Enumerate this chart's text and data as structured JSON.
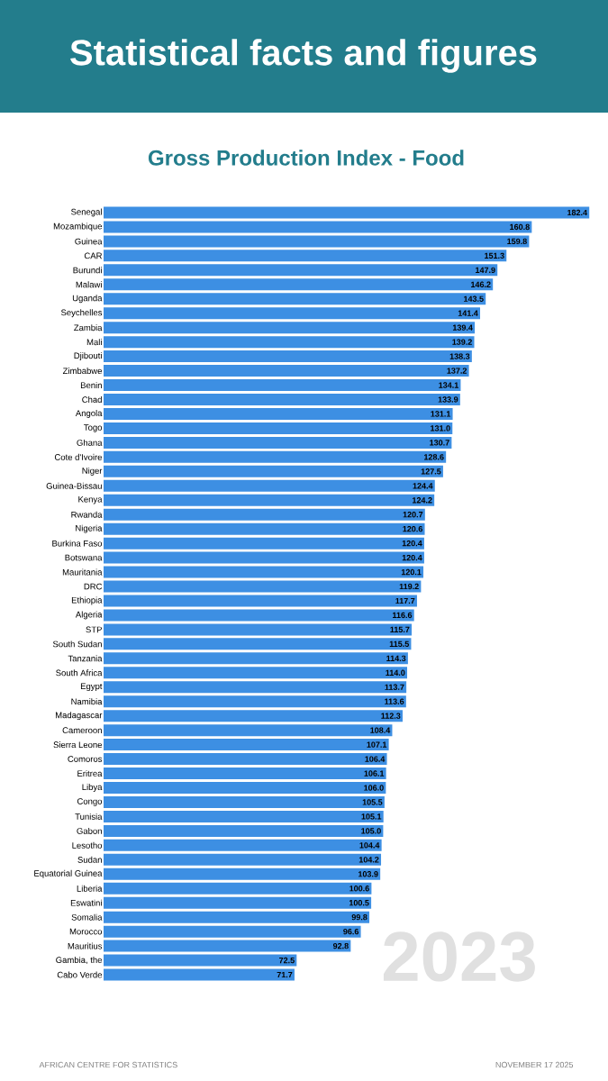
{
  "chart_data": {
    "type": "bar",
    "orientation": "horizontal",
    "title": "Statistical facts and figures",
    "subtitle": "Gross Production Index - Food",
    "categories": [
      "Senegal",
      "Mozambique",
      "Guinea",
      "CAR",
      "Burundi",
      "Malawi",
      "Uganda",
      "Seychelles",
      "Zambia",
      "Mali",
      "Djibouti",
      "Zimbabwe",
      "Benin",
      "Chad",
      "Angola",
      "Togo",
      "Ghana",
      "Cote d'Ivoire",
      "Niger",
      "Guinea-Bissau",
      "Kenya",
      "Rwanda",
      "Nigeria",
      "Burkina Faso",
      "Botswana",
      "Mauritania",
      "DRC",
      "Ethiopia",
      "Algeria",
      "STP",
      "South Sudan",
      "Tanzania",
      "South Africa",
      "Egypt",
      "Namibia",
      "Madagascar",
      "Cameroon",
      "Sierra Leone",
      "Comoros",
      "Eritrea",
      "Libya",
      "Congo",
      "Tunisia",
      "Gabon",
      "Lesotho",
      "Sudan",
      "Equatorial Guinea",
      "Liberia",
      "Eswatini",
      "Somalia",
      "Morocco",
      "Mauritius",
      "Gambia, the",
      "Cabo Verde"
    ],
    "values": [
      182.4,
      160.8,
      159.8,
      151.3,
      147.9,
      146.2,
      143.5,
      141.4,
      139.4,
      139.2,
      138.3,
      137.2,
      134.1,
      133.9,
      131.1,
      131.0,
      130.7,
      128.6,
      127.5,
      124.4,
      124.2,
      120.7,
      120.6,
      120.4,
      120.4,
      120.1,
      119.2,
      117.7,
      116.6,
      115.7,
      115.5,
      114.3,
      114.0,
      113.7,
      113.6,
      112.3,
      108.4,
      107.1,
      106.4,
      106.1,
      106.0,
      105.5,
      105.1,
      105.0,
      104.4,
      104.2,
      103.9,
      100.6,
      100.5,
      99.8,
      96.6,
      92.8,
      72.5,
      71.7
    ],
    "value_labels": [
      "182.4",
      "160.8",
      "159.8",
      "151.3",
      "147.9",
      "146.2",
      "143.5",
      "141.4",
      "139.4",
      "139.2",
      "138.3",
      "137.2",
      "134.1",
      "133.9",
      "131.1",
      "131.0",
      "130.7",
      "128.6",
      "127.5",
      "124.4",
      "124.2",
      "120.7",
      "120.6",
      "120.4",
      "120.4",
      "120.1",
      "119.2",
      "117.7",
      "116.6",
      "115.7",
      "115.5",
      "114.3",
      "114.0",
      "113.7",
      "113.6",
      "112.3",
      "108.4",
      "107.1",
      "106.4",
      "106.1",
      "106.0",
      "105.5",
      "105.1",
      "105.0",
      "104.4",
      "104.2",
      "103.9",
      "100.6",
      "100.5",
      "99.8",
      "96.6",
      "92.8",
      "72.5",
      "71.7"
    ],
    "color": "#3d8fe3",
    "annotations": [
      "2023",
      "AFRICAN CENTRE FOR STATISTICS",
      "NOVEMBER 17 2025"
    ]
  }
}
